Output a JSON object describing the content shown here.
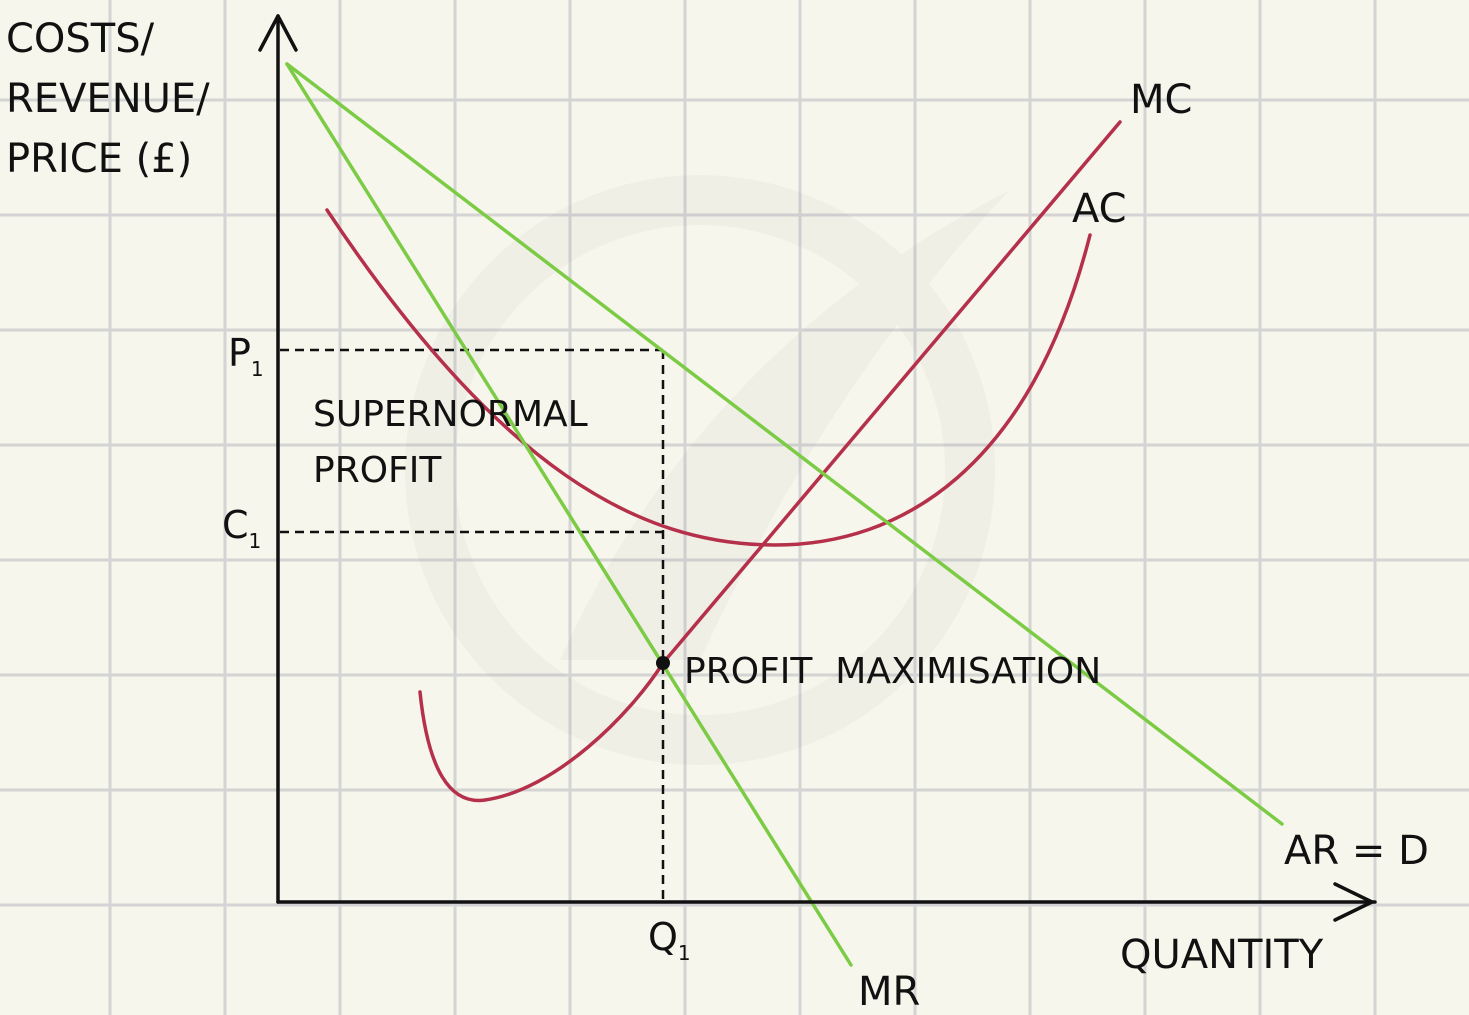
{
  "diagram": {
    "y_axis_label": [
      "COSTS/",
      "REVENUE/",
      "PRICE (£)"
    ],
    "x_axis_label": "QUANTITY",
    "curves": {
      "mc": "MC",
      "ac": "AC",
      "ar": "AR = D",
      "mr": "MR"
    },
    "price_level": {
      "letter": "P",
      "subscript": "1"
    },
    "cost_level": {
      "letter": "C",
      "subscript": "1"
    },
    "quantity_level": {
      "letter": "Q",
      "subscript": "1"
    },
    "area_label": [
      "SUPERNORMAL",
      "PROFIT"
    ],
    "point_label": "PROFIT  MAXIMISATION",
    "colors": {
      "background": "#f6f6ec",
      "grid": "#d4d4d4",
      "cost_curves": "#b5304a",
      "revenue_curves": "#7ccb45",
      "axes": "#111111"
    }
  }
}
